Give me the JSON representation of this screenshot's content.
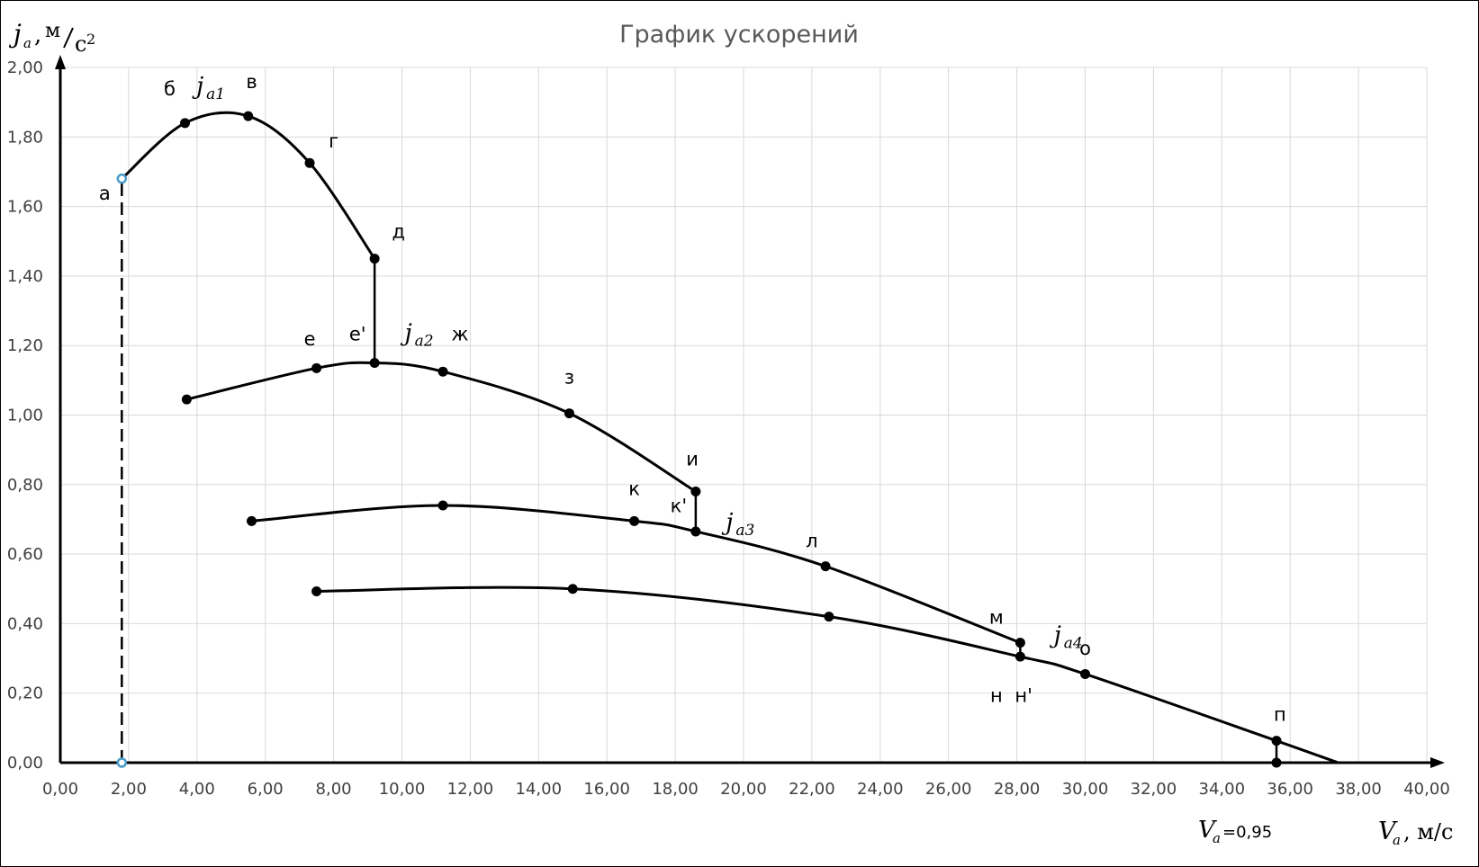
{
  "chart_data": {
    "type": "line",
    "title": "График ускорений",
    "ylabel": {
      "main": "j",
      "sub": "a",
      "unit": ", м/с²",
      "unit_num": "м",
      "unit_den": "с",
      "unit_exp": "2"
    },
    "xlabel": {
      "main": "V",
      "sub": "a",
      "unit": ", м/с"
    },
    "annotation": {
      "main": "V",
      "sub": "a",
      "text": "=0,95"
    },
    "xlim": [
      0,
      40
    ],
    "ylim": [
      0,
      2
    ],
    "x_ticks": [
      "0,00",
      "2,00",
      "4,00",
      "6,00",
      "8,00",
      "10,00",
      "12,00",
      "14,00",
      "16,00",
      "18,00",
      "20,00",
      "22,00",
      "24,00",
      "26,00",
      "28,00",
      "30,00",
      "32,00",
      "34,00",
      "36,00",
      "38,00",
      "40,00"
    ],
    "y_ticks": [
      "0,00",
      "0,20",
      "0,40",
      "0,60",
      "0,80",
      "1,00",
      "1,20",
      "1,40",
      "1,60",
      "1,80",
      "2,00"
    ],
    "grid": true,
    "colors": {
      "line": "#000000",
      "grid": "#d9d9d9",
      "start_marker": "#4a9cc8"
    },
    "series": [
      {
        "name": "ja1",
        "label_main": "j",
        "label_sub": "a1",
        "x": [
          1.8,
          3.65,
          5.5,
          7.3,
          9.2
        ],
        "y": [
          1.68,
          1.84,
          1.86,
          1.725,
          1.45
        ]
      },
      {
        "name": "ja2",
        "label_main": "j",
        "label_sub": "a2",
        "x": [
          3.7,
          7.5,
          9.2,
          11.2,
          14.9,
          18.6
        ],
        "y": [
          1.045,
          1.135,
          1.15,
          1.125,
          1.005,
          0.78
        ]
      },
      {
        "name": "ja3",
        "label_main": "j",
        "label_sub": "a3",
        "x": [
          5.6,
          11.2,
          16.8,
          18.6,
          22.4,
          28.1
        ],
        "y": [
          0.695,
          0.74,
          0.695,
          0.665,
          0.565,
          0.345
        ]
      },
      {
        "name": "ja4",
        "label_main": "j",
        "label_sub": "a4",
        "x": [
          7.5,
          15.0,
          22.5,
          28.1,
          30.0,
          35.6,
          37.4
        ],
        "y": [
          0.493,
          0.5,
          0.42,
          0.305,
          0.255,
          0.063,
          0.0
        ]
      }
    ],
    "transitions": [
      {
        "x": [
          1.8,
          1.8
        ],
        "y": [
          0.0,
          1.68
        ],
        "dashed": true
      },
      {
        "x": [
          9.2,
          9.2
        ],
        "y": [
          1.45,
          1.15
        ],
        "dashed": false
      },
      {
        "x": [
          18.6,
          18.6
        ],
        "y": [
          0.78,
          0.665
        ],
        "dashed": false
      },
      {
        "x": [
          28.1,
          28.1
        ],
        "y": [
          0.345,
          0.305
        ],
        "dashed": false
      },
      {
        "x": [
          35.6,
          35.6
        ],
        "y": [
          0.063,
          0.0
        ],
        "dashed": false
      }
    ],
    "markers": [
      {
        "x": 1.8,
        "y": 1.68,
        "style": "start"
      },
      {
        "x": 1.8,
        "y": 0.0,
        "style": "start"
      },
      {
        "x": 3.65,
        "y": 1.84
      },
      {
        "x": 5.5,
        "y": 1.86
      },
      {
        "x": 7.3,
        "y": 1.725
      },
      {
        "x": 9.2,
        "y": 1.45
      },
      {
        "x": 3.7,
        "y": 1.045
      },
      {
        "x": 7.5,
        "y": 1.135
      },
      {
        "x": 9.2,
        "y": 1.15
      },
      {
        "x": 11.2,
        "y": 1.125
      },
      {
        "x": 14.9,
        "y": 1.005
      },
      {
        "x": 18.6,
        "y": 0.78
      },
      {
        "x": 5.6,
        "y": 0.695
      },
      {
        "x": 11.2,
        "y": 0.74
      },
      {
        "x": 16.8,
        "y": 0.695
      },
      {
        "x": 18.6,
        "y": 0.665
      },
      {
        "x": 22.4,
        "y": 0.565
      },
      {
        "x": 28.1,
        "y": 0.345
      },
      {
        "x": 7.5,
        "y": 0.493
      },
      {
        "x": 15.0,
        "y": 0.5
      },
      {
        "x": 22.5,
        "y": 0.42
      },
      {
        "x": 28.1,
        "y": 0.305
      },
      {
        "x": 30.0,
        "y": 0.255
      },
      {
        "x": 35.6,
        "y": 0.063
      },
      {
        "x": 35.6,
        "y": 0.0
      }
    ],
    "point_labels": [
      {
        "text": "а",
        "x": 1.3,
        "y": 1.62
      },
      {
        "text": "б",
        "x": 3.2,
        "y": 1.92
      },
      {
        "text": "в",
        "x": 5.6,
        "y": 1.94
      },
      {
        "text": "г",
        "x": 8.0,
        "y": 1.77
      },
      {
        "text": "д",
        "x": 9.9,
        "y": 1.51
      },
      {
        "text": "е",
        "x": 7.3,
        "y": 1.2
      },
      {
        "text": "е'",
        "x": 8.7,
        "y": 1.215
      },
      {
        "text": "ж",
        "x": 11.7,
        "y": 1.215
      },
      {
        "text": "з",
        "x": 14.9,
        "y": 1.09
      },
      {
        "text": "и",
        "x": 18.5,
        "y": 0.855
      },
      {
        "text": "к",
        "x": 16.8,
        "y": 0.77
      },
      {
        "text": "к'",
        "x": 18.1,
        "y": 0.72
      },
      {
        "text": "л",
        "x": 22.0,
        "y": 0.62
      },
      {
        "text": "м",
        "x": 27.4,
        "y": 0.4
      },
      {
        "text": "о",
        "x": 30.0,
        "y": 0.31
      },
      {
        "text": "н",
        "x": 27.4,
        "y": 0.175
      },
      {
        "text": "н'",
        "x": 28.2,
        "y": 0.175
      },
      {
        "text": "п",
        "x": 35.7,
        "y": 0.12
      }
    ],
    "series_labels": [
      {
        "series": "ja1",
        "x": 4.3,
        "y": 1.925
      },
      {
        "series": "ja2",
        "x": 10.4,
        "y": 1.215
      },
      {
        "series": "ja3",
        "x": 19.8,
        "y": 0.67
      },
      {
        "series": "ja4",
        "x": 29.4,
        "y": 0.345
      }
    ]
  }
}
